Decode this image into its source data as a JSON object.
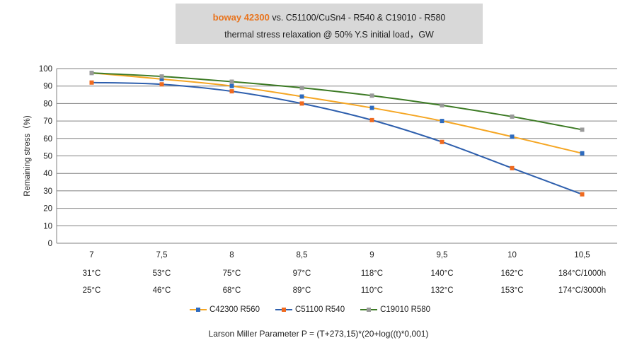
{
  "title": {
    "brand": "boway 42300",
    "line1_rest": " vs. C51100/CuSn4 - R540 & C19010 - R580",
    "line2": "thermal stress relaxation @ 50% Y.S initial load，GW"
  },
  "colors": {
    "brand": "#e8741e",
    "grid": "#808080",
    "title_bg": "#d8d8d8"
  },
  "footer": "Larson Miller Parameter P = (T+273,15)*(20+log((t)*0,001)",
  "chart_data": {
    "type": "line",
    "categories": [
      "7",
      "7,5",
      "8",
      "8,5",
      "9",
      "9,5",
      "10",
      "10,5"
    ],
    "condition_rows": [
      [
        "31°C",
        "53°C",
        "75°C",
        "97°C",
        "118°C",
        "140°C",
        "162°C",
        "184°C/1000h"
      ],
      [
        "25°C",
        "46°C",
        "68°C",
        "89°C",
        "110°C",
        "132°C",
        "153°C",
        "174°C/3000h"
      ]
    ],
    "ylabel": "Remaining stress（%)",
    "ylim": [
      0,
      100
    ],
    "yticks": [
      0,
      10,
      20,
      30,
      40,
      50,
      60,
      70,
      80,
      90,
      100
    ],
    "grid": true,
    "legend_position": "bottom",
    "series": [
      {
        "name": "C42300 R560",
        "line_color": "#f5a623",
        "marker_color": "#2e6bbf",
        "values": [
          97.5,
          94,
          90,
          84,
          77.5,
          70,
          61,
          51.5
        ]
      },
      {
        "name": "C51100 R540",
        "line_color": "#2e5fad",
        "marker_color": "#ef6a1f",
        "values": [
          92,
          91,
          87,
          80,
          70.5,
          58,
          43,
          28
        ]
      },
      {
        "name": "C19010 R580",
        "line_color": "#3c7a24",
        "marker_color": "#9a9a9a",
        "values": [
          97.5,
          95.5,
          92.5,
          89,
          84.5,
          79,
          72.5,
          65
        ]
      }
    ]
  }
}
